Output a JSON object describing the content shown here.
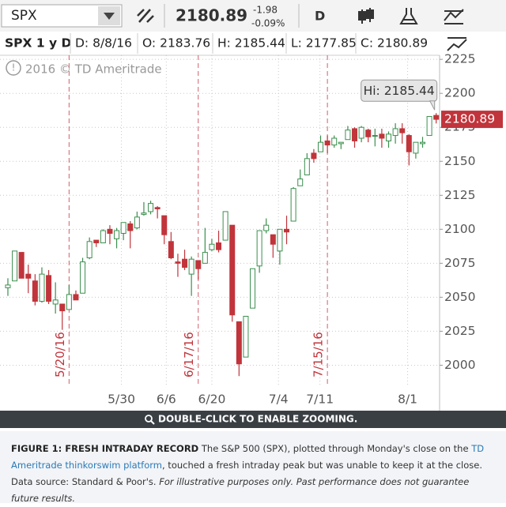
{
  "toolbar": {
    "symbol": "SPX",
    "price": "2180.89",
    "change": "-1.98",
    "change_pct": "-0.09%",
    "period": "D"
  },
  "header": [
    "SPX 1 y D",
    "D: 8/8/16",
    "O: 2183.76",
    "H: 2185.44",
    "L: 2177.85",
    "C: 2180.89"
  ],
  "watermark": "2016 © TD Ameritrade",
  "chart_data": {
    "type": "candlestick",
    "open": [
      2057,
      2062,
      2083,
      2067,
      2062,
      2047,
      2066,
      2045,
      2045,
      2041,
      2052,
      2053,
      2079,
      2092,
      2090,
      2100,
      2093,
      2097,
      2104,
      2101,
      2111,
      2113,
      2116,
      2110,
      2091,
      2076,
      2078,
      2067,
      2077,
      2075,
      2085,
      2090,
      2092,
      2103,
      2032,
      2006,
      2042,
      2073,
      2099,
      2096,
      2084,
      2100,
      2106,
      2132,
      2140,
      2156,
      2157,
      2165,
      2162,
      2163,
      2166,
      2174,
      2167,
      2173,
      2169,
      2170,
      2165,
      2169,
      2174,
      2169,
      2156,
      2163,
      2169,
      2183.76
    ],
    "high": [
      2064,
      2084,
      2083,
      2074,
      2067,
      2072,
      2070,
      2061,
      2045,
      2059,
      2055,
      2079,
      2094,
      2092,
      2100,
      2103,
      2101,
      2105,
      2106,
      2113,
      2120,
      2121,
      2117,
      2110,
      2098,
      2082,
      2085,
      2080,
      2077,
      2101,
      2093,
      2099,
      2113,
      2103,
      2032,
      2036,
      2071,
      2099,
      2108,
      2096,
      2100,
      2110,
      2131,
      2144,
      2156,
      2159,
      2169,
      2169,
      2169,
      2164,
      2176,
      2175,
      2176,
      2174,
      2174,
      2174,
      2172,
      2178,
      2178,
      2170,
      2164,
      2168,
      2183,
      2185.44
    ],
    "low": [
      2051,
      2062,
      2064,
      2053,
      2044,
      2046,
      2045,
      2038,
      2026,
      2041,
      2048,
      2053,
      2078,
      2087,
      2090,
      2089,
      2086,
      2092,
      2086,
      2100,
      2110,
      2111,
      2108,
      2089,
      2078,
      2065,
      2070,
      2051,
      2063,
      2075,
      2084,
      2083,
      2092,
      2032,
      1992,
      2006,
      2042,
      2068,
      2097,
      2079,
      2074,
      2089,
      2106,
      2132,
      2140,
      2149,
      2157,
      2156,
      2160,
      2159,
      2166,
      2160,
      2164,
      2164,
      2161,
      2160,
      2160,
      2163,
      2163,
      2147,
      2152,
      2160,
      2169,
      2177.85
    ],
    "close": [
      2059,
      2084,
      2064,
      2064,
      2047,
      2067,
      2047,
      2048,
      2040,
      2052,
      2048,
      2076,
      2091,
      2090,
      2099,
      2097,
      2099,
      2105,
      2099,
      2109,
      2112,
      2119,
      2115,
      2096,
      2079,
      2075,
      2072,
      2078,
      2071,
      2083,
      2089,
      2085,
      2113,
      2037,
      2001,
      2036,
      2071,
      2099,
      2103,
      2089,
      2100,
      2098,
      2130,
      2137,
      2152,
      2152,
      2164,
      2162,
      2167,
      2164,
      2173,
      2165,
      2175,
      2168,
      2169,
      2167,
      2170,
      2174,
      2171,
      2157,
      2164,
      2164,
      2183,
      2180.89
    ],
    "up_color": "#3b8f4e",
    "down_color": "#c1343b",
    "xlim": [
      -1.16,
      63.5
    ],
    "xticks": [
      {
        "value": 16.7,
        "label": "5/30"
      },
      {
        "value": 23.3,
        "label": "6/6"
      },
      {
        "value": 30,
        "label": "6/20"
      },
      {
        "value": 39.8,
        "label": "7/4"
      },
      {
        "value": 45.9,
        "label": "7/11"
      },
      {
        "value": 58.8,
        "label": "8/1"
      }
    ],
    "ylim": [
      1984,
      2228
    ],
    "yticks": [
      2000,
      2025,
      2050,
      2075,
      2100,
      2125,
      2150,
      2175,
      2200,
      2225
    ],
    "grid": true,
    "annotations": [
      {
        "value": 9,
        "label": "5/20/16"
      },
      {
        "value": 28,
        "label": "6/17/16"
      },
      {
        "value": 47,
        "label": "7/15/16"
      }
    ],
    "hi_label": "Hi: 2185.44",
    "last_price": 2180.89
  },
  "zoom_hint": "DOUBLE-CLICK TO ENABLE ZOOMING.",
  "caption": {
    "label": "FIGURE 1: FRESH INTRADAY RECORD",
    "text1": "The S&P 500 (SPX), plotted through Monday's close on the",
    "link": "TD Ameritrade thinkorswim platform",
    "text2": ", touched a fresh intraday peak but was unable to keep it at the close. Data source: Standard & Poor's.",
    "note": "For illustrative purposes only. Past performance does not guarantee future results."
  }
}
